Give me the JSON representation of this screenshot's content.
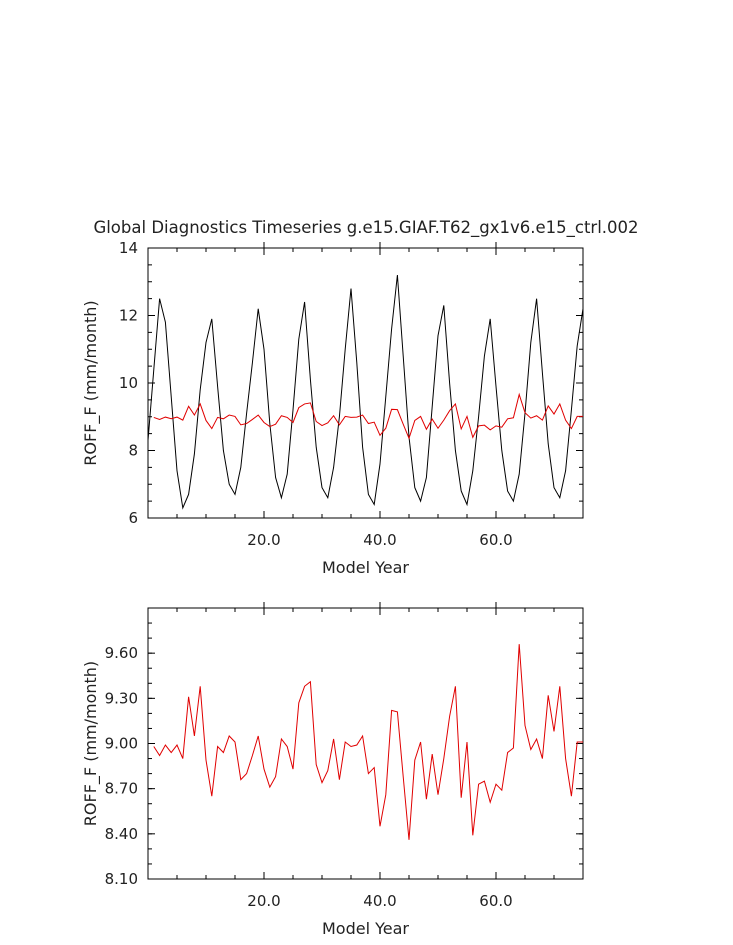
{
  "chart_data": [
    {
      "type": "line",
      "title": "Global Diagnostics Timeseries g.e15.GIAF.T62_gx1v6.e15_ctrl.002",
      "xlabel": "Model Year",
      "ylabel": "ROFF_F (mm/month)",
      "xlim": [
        0,
        75
      ],
      "ylim": [
        6,
        14
      ],
      "xticks": [
        "20.0",
        "40.0",
        "60.0"
      ],
      "yticks": [
        "6",
        "8",
        "10",
        "12",
        "14"
      ],
      "monthly_amplitude_note": "",
      "series": [
        {
          "color": "#000000",
          "values": [
            8.3,
            10.4,
            12.5,
            11.8,
            9.6,
            7.4,
            6.3,
            6.7,
            7.9,
            9.8,
            11.2,
            11.9,
            9.9,
            8.0,
            7.0,
            6.7,
            7.5,
            9.1,
            10.6,
            12.2,
            11.0,
            8.8,
            7.2,
            6.6,
            7.3,
            9.2,
            11.3,
            12.4,
            10.1,
            8.1,
            6.9,
            6.6,
            7.5,
            9.0,
            11.0,
            12.8,
            10.6,
            8.1,
            6.7,
            6.4,
            7.6,
            9.6,
            11.6,
            13.2,
            10.8,
            8.4,
            6.9,
            6.5,
            7.2,
            9.3,
            11.4,
            12.3,
            10.0,
            8.0,
            6.8,
            6.4,
            7.4,
            9.0,
            10.8,
            11.9,
            9.9,
            8.0,
            6.8,
            6.5,
            7.3,
            9.1,
            11.2,
            12.5,
            10.3,
            8.2,
            6.9,
            6.6,
            7.4,
            9.2,
            11.1,
            12.2
          ]
        },
        {
          "color": "#e00000",
          "x": [
            1,
            2,
            3,
            4,
            5,
            6,
            7,
            8,
            9,
            10,
            11,
            12,
            13,
            14,
            15,
            16,
            17,
            18,
            19,
            20,
            21,
            22,
            23,
            24,
            25,
            26,
            27,
            28,
            29,
            30,
            31,
            32,
            33,
            34,
            35,
            36,
            37,
            38,
            39,
            40,
            41,
            42,
            43,
            44,
            45,
            46,
            47,
            48,
            49,
            50,
            51,
            52,
            53,
            54,
            55,
            56,
            57,
            58,
            59,
            60,
            61,
            62,
            63,
            64,
            65,
            66,
            67,
            68,
            69,
            70,
            71,
            72,
            73,
            74,
            75
          ],
          "values": [
            8.98,
            8.92,
            8.99,
            8.94,
            8.99,
            8.9,
            9.31,
            9.05,
            9.38,
            8.89,
            8.65,
            8.98,
            8.94,
            9.05,
            9.01,
            8.76,
            8.8,
            8.92,
            9.05,
            8.83,
            8.71,
            8.78,
            9.03,
            8.98,
            8.83,
            9.27,
            9.38,
            9.41,
            8.86,
            8.74,
            8.82,
            9.03,
            8.76,
            9.01,
            8.98,
            8.99,
            9.05,
            8.8,
            8.84,
            8.45,
            8.66,
            9.22,
            9.21,
            8.78,
            8.36,
            8.89,
            9.01,
            8.63,
            8.93,
            8.66,
            8.9,
            9.18,
            9.38,
            8.64,
            9.01,
            8.39,
            8.73,
            8.75,
            8.61,
            8.73,
            8.69,
            8.94,
            8.97,
            9.66,
            9.12,
            8.96,
            9.03,
            8.9,
            9.32,
            9.08,
            9.38,
            8.9,
            8.65,
            9.01,
            9.01
          ]
        }
      ]
    },
    {
      "type": "line",
      "title": "",
      "xlabel": "Model Year",
      "ylabel": "ROFF_F (mm/month)",
      "xlim": [
        0,
        75
      ],
      "ylim": [
        8.1,
        9.9
      ],
      "xticks": [
        "20.0",
        "40.0",
        "60.0"
      ],
      "yticks": [
        "8.10",
        "8.40",
        "8.70",
        "9.00",
        "9.30",
        "9.60"
      ],
      "series": [
        {
          "color": "#e00000",
          "values": [
            8.98,
            8.92,
            8.99,
            8.94,
            8.99,
            8.9,
            9.31,
            9.05,
            9.38,
            8.89,
            8.65,
            8.98,
            8.94,
            9.05,
            9.01,
            8.76,
            8.8,
            8.92,
            9.05,
            8.83,
            8.71,
            8.78,
            9.03,
            8.98,
            8.83,
            9.27,
            9.38,
            9.41,
            8.86,
            8.74,
            8.82,
            9.03,
            8.76,
            9.01,
            8.98,
            8.99,
            9.05,
            8.8,
            8.84,
            8.45,
            8.66,
            9.22,
            9.21,
            8.78,
            8.36,
            8.89,
            9.01,
            8.63,
            8.93,
            8.66,
            8.9,
            9.18,
            9.38,
            8.64,
            9.01,
            8.39,
            8.73,
            8.75,
            8.61,
            8.73,
            8.69,
            8.94,
            8.97,
            9.66,
            9.12,
            8.96,
            9.03,
            8.9,
            9.32,
            9.08,
            9.38,
            8.9,
            8.65,
            9.01,
            9.01
          ]
        }
      ]
    }
  ]
}
